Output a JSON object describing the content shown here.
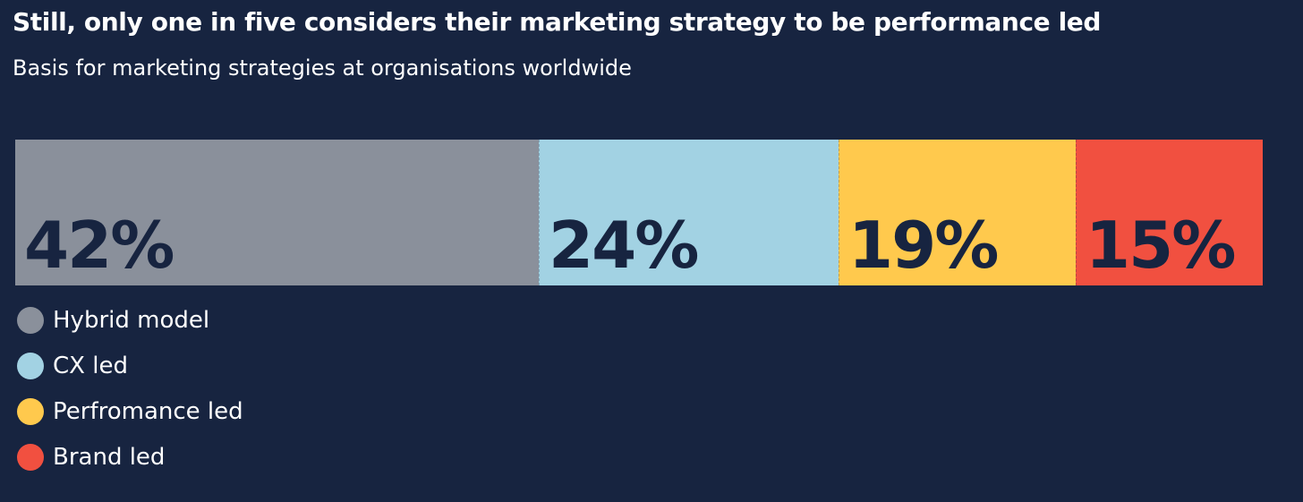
{
  "chart_data": {
    "type": "bar",
    "stacked": true,
    "orientation": "horizontal",
    "title": "Still, only one in five considers their marketing strategy to be performance led",
    "subtitle": "Basis for marketing strategies at organisations worldwide",
    "categories": [
      "Hybrid model",
      "CX led",
      "Perfromance led",
      "Brand led"
    ],
    "values": [
      42,
      24,
      19,
      15
    ],
    "labels": [
      "42%",
      "24%",
      "19%",
      "15%"
    ],
    "colors": [
      "#8a909b",
      "#a2d2e3",
      "#ffc94d",
      "#f15040"
    ],
    "unit": "%",
    "legend_position": "bottom-left"
  },
  "background_color": "#172440",
  "text_color": "#ffffff",
  "label_color": "#172440"
}
